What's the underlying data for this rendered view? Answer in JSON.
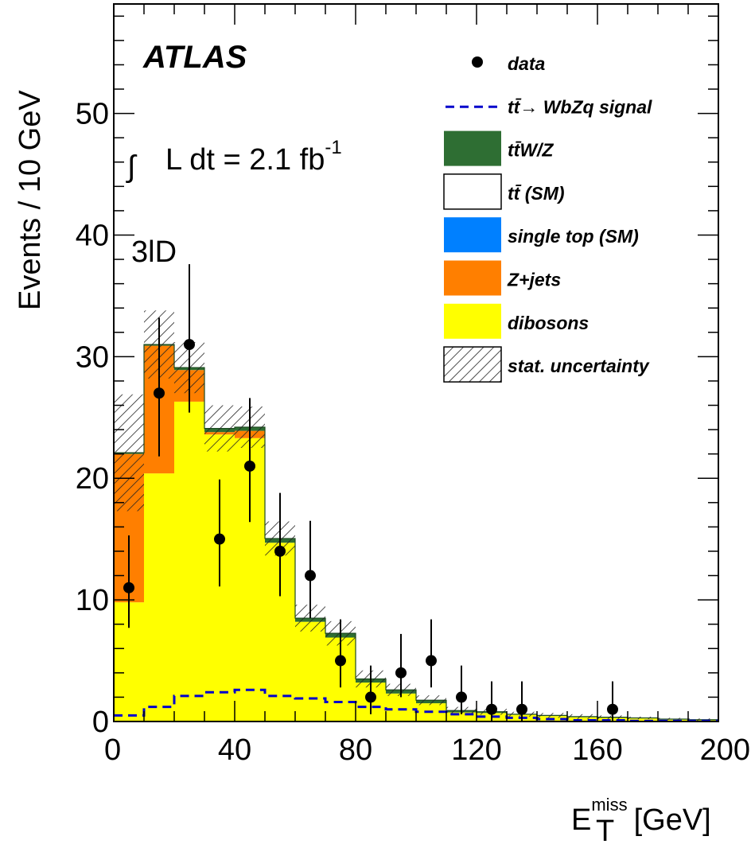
{
  "chart_data": {
    "type": "bar",
    "x_bin_edges": [
      0,
      10,
      20,
      30,
      40,
      50,
      60,
      70,
      80,
      90,
      100,
      110,
      120,
      130,
      140,
      150,
      160,
      170,
      180,
      190,
      200
    ],
    "xlim": [
      0,
      200
    ],
    "ylim": [
      0,
      59
    ],
    "x_ticks": [
      "0",
      "40",
      "80",
      "120",
      "160",
      "200"
    ],
    "y_ticks": [
      "0",
      "10",
      "20",
      "30",
      "40",
      "50"
    ],
    "ylabel": "Events / 10 GeV",
    "xlabel": {
      "main": "E",
      "sup": "miss",
      "sub": "T",
      "unit": "[GeV]"
    },
    "experiment": "ATLAS",
    "lumi": {
      "prefix": "∫",
      "text": "L dt = 2.1 fb",
      "sup": "-1"
    },
    "channel": "3lD",
    "series": [
      {
        "name": "dibosons",
        "color": "#ffff00",
        "values": [
          9.8,
          20.4,
          26.3,
          23.6,
          23.3,
          14.7,
          8.2,
          6.9,
          3.2,
          2.3,
          1.5,
          0.75,
          0.7,
          0.55,
          0.45,
          0.35,
          0.3,
          0.25,
          0.15,
          0.1
        ]
      },
      {
        "name": "Z+jets",
        "color": "#ff7f00",
        "values": [
          12.2,
          10.5,
          2.6,
          0.2,
          0.6,
          0,
          0,
          0,
          0,
          0,
          0,
          0,
          0,
          0,
          0,
          0,
          0,
          0,
          0,
          0
        ]
      },
      {
        "name": "single top (SM)",
        "color": "#0080ff",
        "values": [
          0,
          0,
          0,
          0,
          0,
          0,
          0,
          0,
          0,
          0,
          0,
          0,
          0,
          0,
          0,
          0,
          0,
          0,
          0,
          0
        ]
      },
      {
        "name": "tt̄ (SM)",
        "color": "#ffffff",
        "values": [
          0,
          0,
          0,
          0,
          0,
          0,
          0,
          0,
          0,
          0,
          0,
          0,
          0,
          0,
          0,
          0,
          0,
          0,
          0,
          0
        ]
      },
      {
        "name": "tt̄W/Z",
        "color": "#2e6e33",
        "values": [
          0.1,
          0.1,
          0.2,
          0.3,
          0.3,
          0.35,
          0.3,
          0.35,
          0.3,
          0.3,
          0.25,
          0.15,
          0.1,
          0.05,
          0.05,
          0.05,
          0.05,
          0.05,
          0.05,
          0.05
        ]
      }
    ],
    "stat_uncertainty": [
      4.8,
      2.8,
      2.1,
      1.9,
      1.7,
      1.4,
      1.1,
      1.0,
      0.7,
      0.5,
      0.4,
      0.3,
      0.25,
      0.2,
      0.2,
      0.2,
      0.15,
      0.1,
      0.1,
      0.1
    ],
    "signal": {
      "name": "tt̄→ WbZq signal",
      "color": "#0000cc",
      "values": [
        0.5,
        1.2,
        2.1,
        2.4,
        2.6,
        2.1,
        1.9,
        1.6,
        1.2,
        1.0,
        0.8,
        0.6,
        0.4,
        0.3,
        0.2,
        0.1,
        0.1,
        0.05,
        0.05,
        0.05
      ]
    },
    "data": {
      "name": "data",
      "x": [
        5,
        15,
        25,
        35,
        45,
        55,
        65,
        75,
        85,
        95,
        105,
        115,
        125,
        135,
        165
      ],
      "y": [
        11,
        27,
        31,
        15,
        21,
        14,
        12,
        5,
        2,
        4,
        5,
        2,
        1,
        1,
        1
      ],
      "err_low": [
        3.3,
        5.2,
        5.6,
        3.9,
        4.6,
        3.7,
        3.5,
        2.2,
        1.4,
        2.0,
        2.2,
        1.4,
        1.0,
        1.0,
        1.0
      ],
      "err_high": [
        4.3,
        6.2,
        6.6,
        4.9,
        5.6,
        4.8,
        4.5,
        3.4,
        2.6,
        3.2,
        3.4,
        2.6,
        2.3,
        2.3,
        2.3
      ]
    },
    "legend": {
      "position": "top-right",
      "entries": [
        {
          "label": "data",
          "style": "marker"
        },
        {
          "label": "tt̄→ WbZq signal",
          "style": "dashed",
          "color": "#0000cc"
        },
        {
          "label": "tt̄W/Z",
          "style": "box",
          "color": "#2e6e33"
        },
        {
          "label": "tt̄ (SM)",
          "style": "box",
          "color": "#ffffff"
        },
        {
          "label": "single top (SM)",
          "style": "box",
          "color": "#0080ff"
        },
        {
          "label": "Z+jets",
          "style": "box",
          "color": "#ff7f00"
        },
        {
          "label": "dibosons",
          "style": "box",
          "color": "#ffff00"
        },
        {
          "label": "stat. uncertainty",
          "style": "hatch"
        }
      ]
    }
  }
}
